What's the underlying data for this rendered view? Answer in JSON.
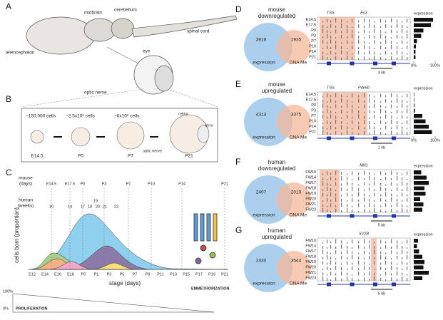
{
  "panel_a": {
    "letter": "A",
    "labels": [
      "telencephalon",
      "midbrain",
      "cerebellum",
      "spinal cord",
      "optic nerve",
      "eye"
    ]
  },
  "panel_b": {
    "letter": "B",
    "cell_counts": [
      "~150,000 cells",
      "~2.5x10⁶ cells",
      "~6x10⁶ cells"
    ],
    "labels": [
      "retina",
      "lens",
      "optic nerve"
    ],
    "stages": [
      "E14.5",
      "P0",
      "P7",
      "P21"
    ]
  },
  "panel_c": {
    "letter": "C",
    "mouse_label": [
      "mouse",
      "(days)"
    ],
    "human_label": [
      "human",
      "(weeks)"
    ],
    "mouse_stages": [
      "E14.5",
      "E17.5",
      "P0",
      "P3",
      "P7",
      "P10",
      "P14",
      "P21"
    ],
    "human_weeks": [
      "10",
      "14",
      "17",
      "18",
      "19",
      "20",
      "21",
      "23"
    ],
    "y_label": "cells born (proportion)",
    "x_label": "stage (days)",
    "x_ticks": [
      "E12",
      "E14",
      "E16",
      "E18",
      "P0",
      "P1",
      "P3",
      "P5",
      "P7",
      "P9",
      "P11",
      "P13",
      "P15",
      "P17",
      "P19",
      "P21"
    ],
    "gradient_labels": [
      "100%",
      "0%"
    ],
    "proliferation": "PROLIFERATION",
    "emmetropization": "EMMETROPIZATION"
  },
  "tracks": [
    {
      "letter": "D",
      "title": [
        "mouse",
        "downregulated"
      ],
      "expression_count": "3918",
      "dna_me_count": "1935",
      "venn_labels": [
        "expression",
        "DNA Me"
      ],
      "gene": "Fo3",
      "tss": "TSS",
      "column_title": "expression",
      "rows": [
        "E14.5",
        "E17.5",
        "P0",
        "P3",
        "P7",
        "P10",
        "P14",
        "P21"
      ],
      "expression_values": [
        90,
        80,
        45,
        35,
        15,
        10,
        8,
        8
      ],
      "xlim": [
        0,
        100
      ],
      "xticks": [
        {
          "value": 0,
          "label": "0%"
        },
        {
          "value": 100,
          "label": "100%"
        }
      ],
      "scale_bar": "3 kb"
    },
    {
      "letter": "E",
      "title": [
        "mouse",
        "upregulated"
      ],
      "expression_count": "4313",
      "dna_me_count": "3375",
      "venn_labels": [
        "expression",
        "DNA Me"
      ],
      "gene": "Pde6b",
      "tss": "TSS",
      "column_title": "expression",
      "rows": [
        "E14.5",
        "E17.5",
        "P0",
        "P3",
        "P7",
        "P10",
        "P14",
        "P21"
      ],
      "expression_values": [
        2,
        2,
        3,
        5,
        40,
        55,
        70,
        85
      ],
      "xlim": [
        0,
        100
      ],
      "xticks": [
        {
          "value": 0,
          "label": "0%"
        },
        {
          "value": 100,
          "label": "100%"
        }
      ],
      "scale_bar": "1 kb"
    },
    {
      "letter": "F",
      "title": [
        "human",
        "downregulated"
      ],
      "expression_count": "2407",
      "dna_me_count": "2019",
      "venn_labels": [
        "expression",
        "DNA Me"
      ],
      "gene": "MN1",
      "column_title": "expression",
      "rows": [
        "FW10",
        "FW14",
        "FW17",
        "FW18",
        "FW19",
        "FW20",
        "FW21",
        "FW23"
      ],
      "expression_values": [
        35,
        60,
        70,
        50,
        55,
        30,
        45,
        40
      ],
      "xlim": [
        0,
        100
      ],
      "scale_bar": "5 kb"
    },
    {
      "letter": "G",
      "title": [
        "human",
        "upregulated"
      ],
      "expression_count": "3330",
      "dna_me_count": "3544",
      "venn_labels": [
        "expression",
        "DNA Me"
      ],
      "gene": "SV2B",
      "column_title": "expression",
      "rows": [
        "FW10",
        "FW14",
        "FW17",
        "FW18",
        "FW19",
        "FW20",
        "FW21",
        "FW23"
      ],
      "expression_values": [
        20,
        15,
        25,
        40,
        50,
        45,
        70,
        40
      ],
      "xlim": [
        0,
        100
      ],
      "scale_bar": "5 kb"
    }
  ]
}
